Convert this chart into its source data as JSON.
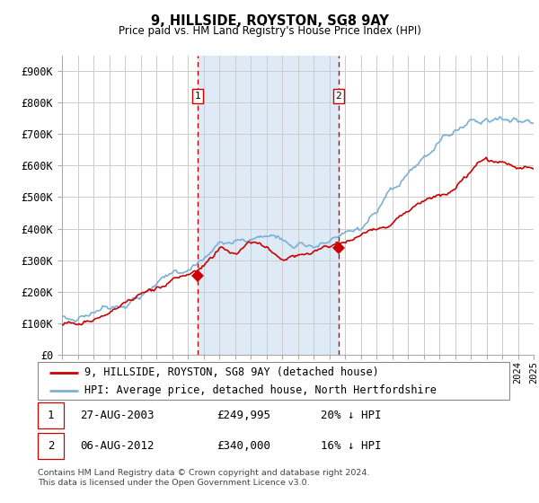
{
  "title": "9, HILLSIDE, ROYSTON, SG8 9AY",
  "subtitle": "Price paid vs. HM Land Registry's House Price Index (HPI)",
  "legend_line1": "9, HILLSIDE, ROYSTON, SG8 9AY (detached house)",
  "legend_line2": "HPI: Average price, detached house, North Hertfordshire",
  "sale1_date": "27-AUG-2003",
  "sale1_price": "£249,995",
  "sale1_hpi": "20% ↓ HPI",
  "sale2_date": "06-AUG-2012",
  "sale2_price": "£340,000",
  "sale2_hpi": "16% ↓ HPI",
  "footer": "Contains HM Land Registry data © Crown copyright and database right 2024.\nThis data is licensed under the Open Government Licence v3.0.",
  "red_color": "#cc0000",
  "blue_color": "#7ab0d4",
  "vline_color": "#cc0000",
  "shade_color": "#deeaf5",
  "ylim": [
    0,
    950000
  ],
  "yticks": [
    0,
    100000,
    200000,
    300000,
    400000,
    500000,
    600000,
    700000,
    800000,
    900000
  ],
  "ytick_labels": [
    "£0",
    "£100K",
    "£200K",
    "£300K",
    "£400K",
    "£500K",
    "£600K",
    "£700K",
    "£800K",
    "£900K"
  ],
  "sale1_year": 2003.625,
  "sale1_price_val": 249995,
  "sale2_year": 2012.583,
  "sale2_price_val": 340000
}
